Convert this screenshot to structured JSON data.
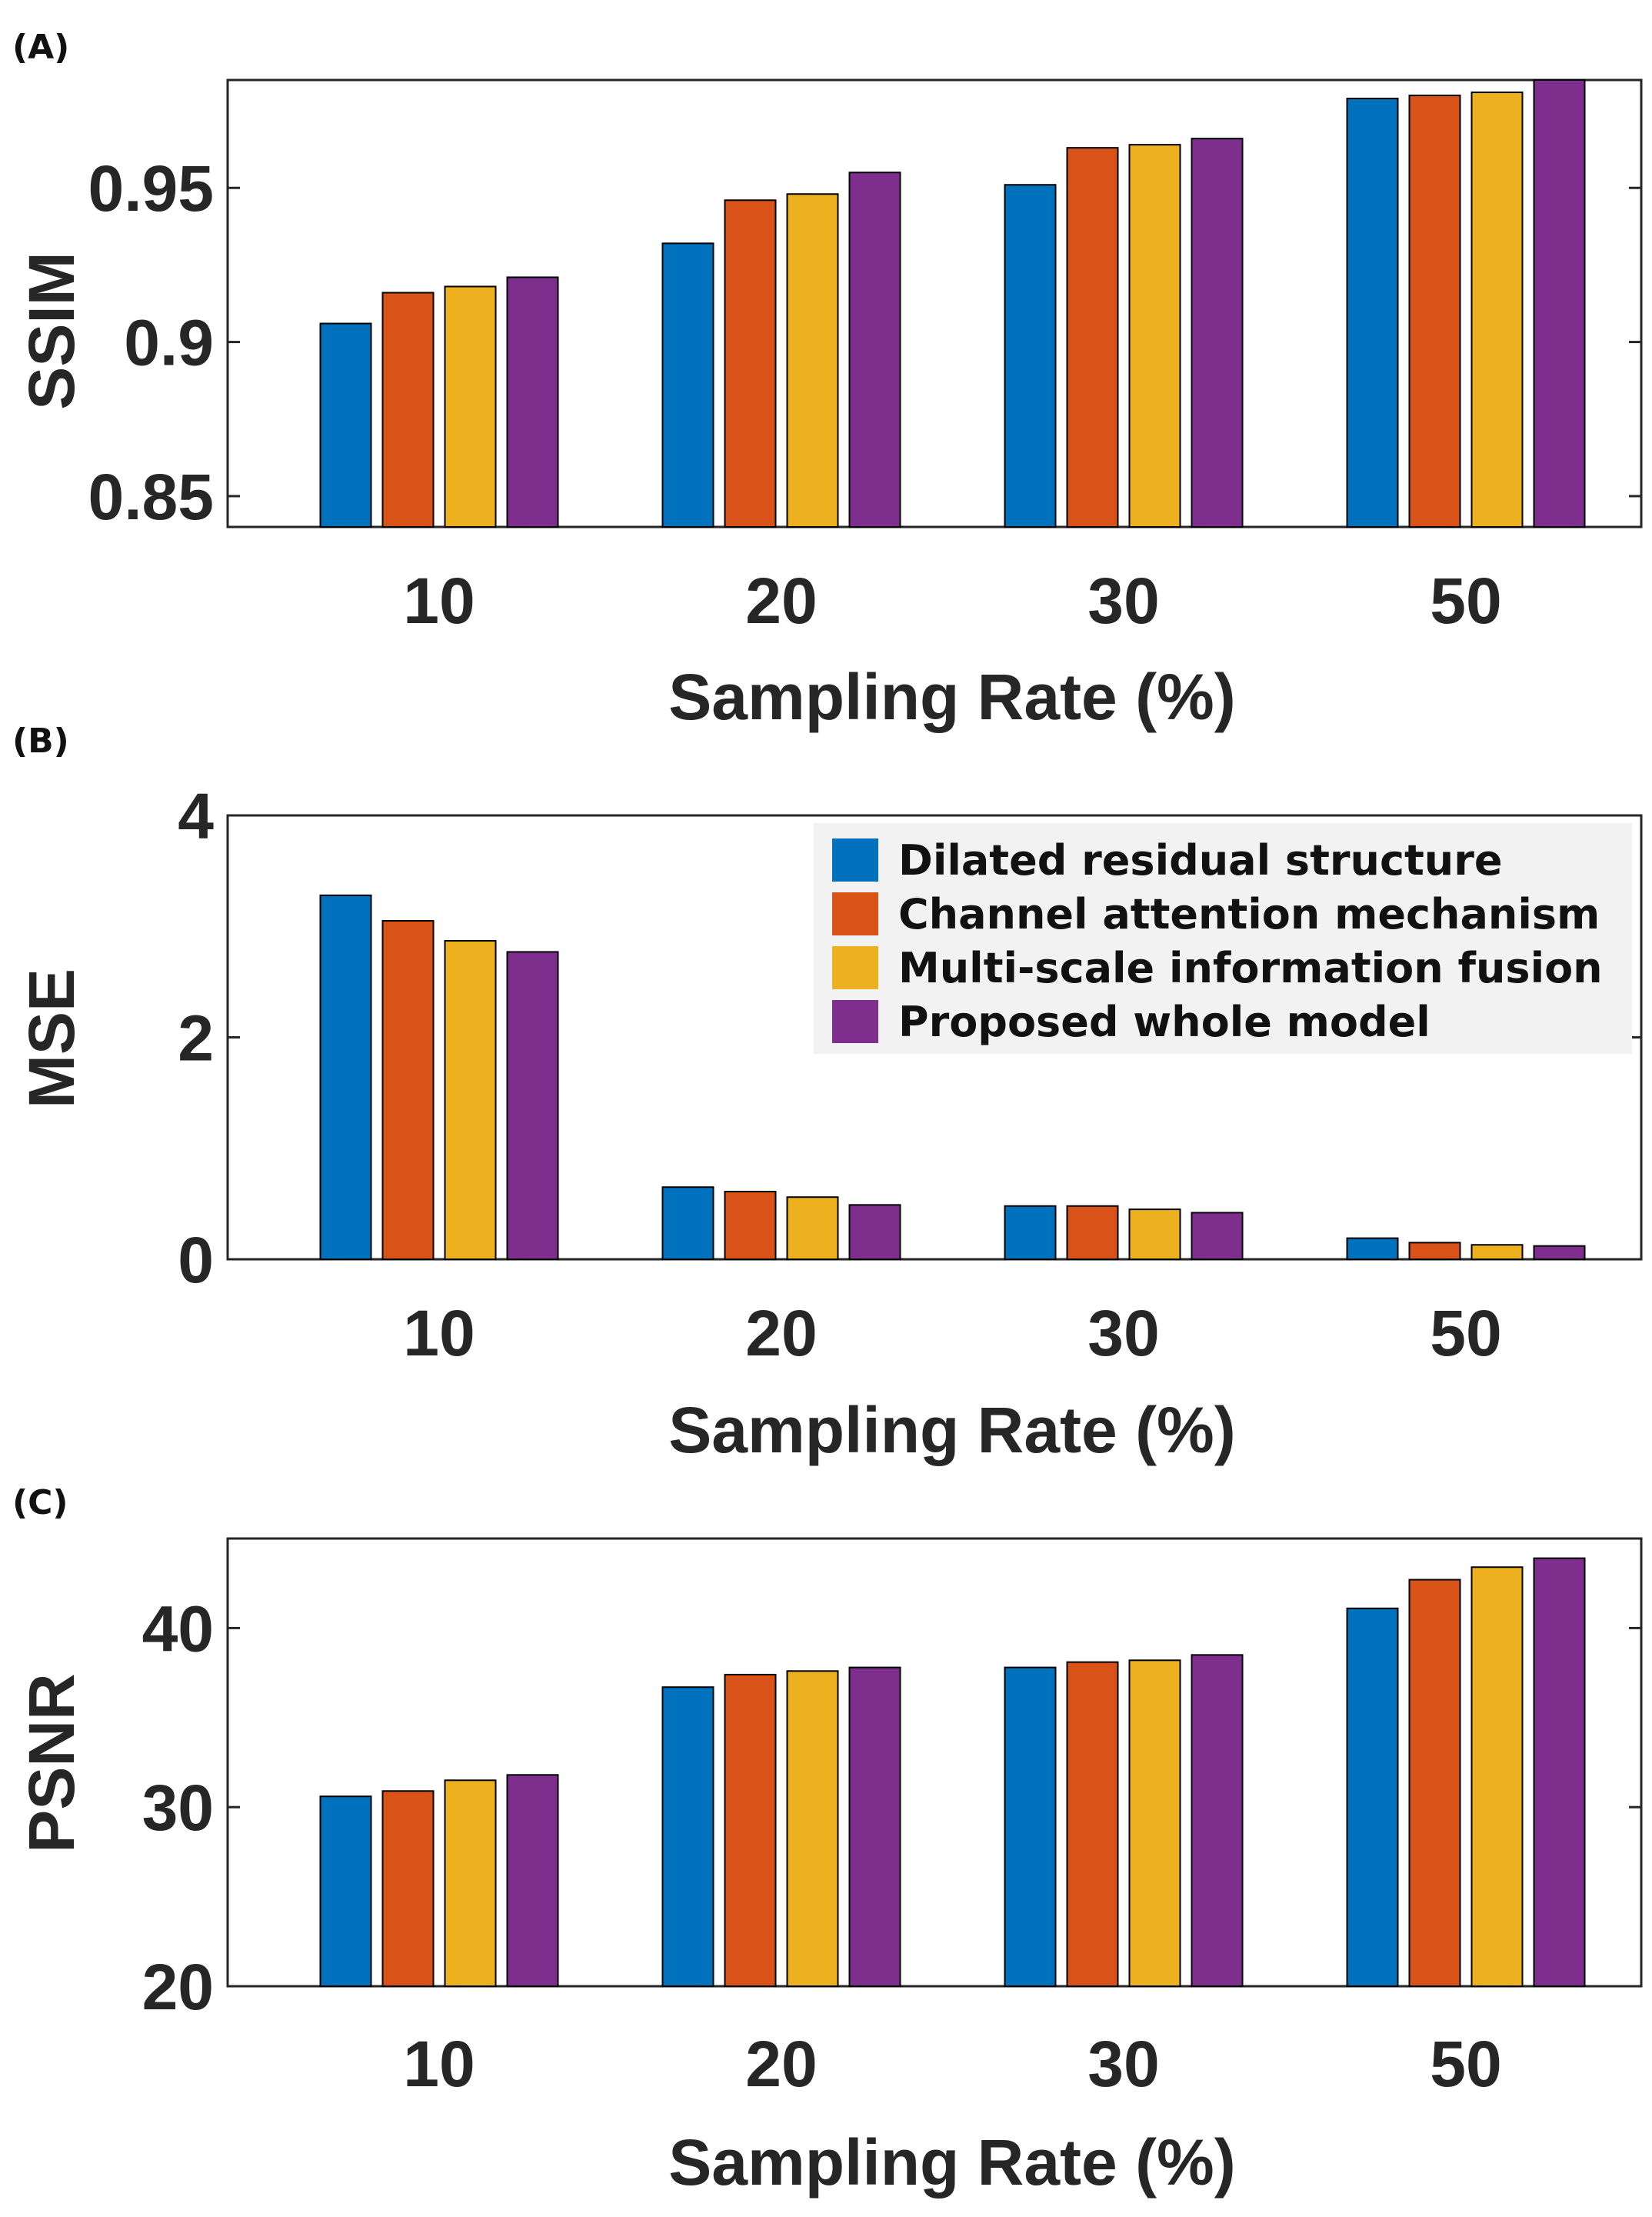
{
  "figure": {
    "colors": {
      "series": [
        "#0072BD",
        "#D95319",
        "#EDB120",
        "#7E2F8E"
      ],
      "axis": "#262626",
      "legend_bg": "#f2f2f2"
    }
  },
  "chart_data": [
    {
      "type": "bar",
      "panel_label": "(A)",
      "categories": [
        "10",
        "20",
        "30",
        "50"
      ],
      "xlabel": "Sampling Rate (%)",
      "ylabel": "SSIM",
      "ylim": [
        0.84,
        0.985
      ],
      "yticks": [
        0.85,
        0.9,
        0.95
      ],
      "ytick_labels": [
        "0.85",
        "0.9",
        "0.95"
      ],
      "series": [
        {
          "name": "Dilated residual structure",
          "values": [
            0.906,
            0.932,
            0.951,
            0.979
          ]
        },
        {
          "name": "Channel attention mechanism",
          "values": [
            0.916,
            0.946,
            0.963,
            0.98
          ]
        },
        {
          "name": "Multi-scale information fusion",
          "values": [
            0.918,
            0.948,
            0.964,
            0.981
          ]
        },
        {
          "name": "Proposed whole model",
          "values": [
            0.921,
            0.955,
            0.966,
            0.985
          ]
        }
      ],
      "legend": null
    },
    {
      "type": "bar",
      "panel_label": "(B)",
      "categories": [
        "10",
        "20",
        "30",
        "50"
      ],
      "xlabel": "Sampling Rate (%)",
      "ylabel": "MSE",
      "ylim": [
        0,
        4
      ],
      "yticks": [
        0,
        2,
        4
      ],
      "ytick_labels": [
        "0",
        "2",
        "4"
      ],
      "series": [
        {
          "name": "Dilated residual structure",
          "values": [
            3.28,
            0.65,
            0.48,
            0.19
          ]
        },
        {
          "name": "Channel attention mechanism",
          "values": [
            3.05,
            0.61,
            0.48,
            0.15
          ]
        },
        {
          "name": "Multi-scale information fusion",
          "values": [
            2.87,
            0.56,
            0.45,
            0.13
          ]
        },
        {
          "name": "Proposed whole model",
          "values": [
            2.77,
            0.49,
            0.42,
            0.12
          ]
        }
      ],
      "legend": {
        "placement": "top-right",
        "entries": [
          "Dilated residual structure",
          "Channel attention mechanism",
          "Multi-scale information fusion",
          "Proposed whole model"
        ]
      }
    },
    {
      "type": "bar",
      "panel_label": "(C)",
      "categories": [
        "10",
        "20",
        "30",
        "50"
      ],
      "xlabel": "Sampling Rate (%)",
      "ylabel": "PSNR",
      "ylim": [
        20,
        45
      ],
      "yticks": [
        20,
        30,
        40
      ],
      "ytick_labels": [
        "20",
        "30",
        "40"
      ],
      "series": [
        {
          "name": "Dilated residual structure",
          "values": [
            30.6,
            36.7,
            37.8,
            41.1
          ]
        },
        {
          "name": "Channel attention mechanism",
          "values": [
            30.9,
            37.4,
            38.1,
            42.7
          ]
        },
        {
          "name": "Multi-scale information fusion",
          "values": [
            31.5,
            37.6,
            38.2,
            43.4
          ]
        },
        {
          "name": "Proposed whole model",
          "values": [
            31.8,
            37.8,
            38.5,
            43.9
          ]
        }
      ],
      "legend": null
    }
  ]
}
